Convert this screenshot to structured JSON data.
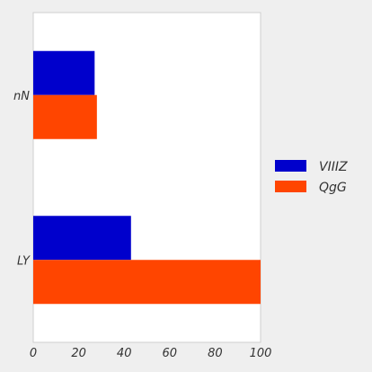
{
  "chart_data": {
    "type": "bar",
    "orientation": "horizontal",
    "categories": [
      "nN",
      "LY"
    ],
    "series": [
      {
        "name": "VIIIZ",
        "color": "#0000cc",
        "values": [
          27,
          43
        ]
      },
      {
        "name": "QgG",
        "color": "#ff4500",
        "values": [
          28,
          100
        ]
      }
    ],
    "xlim": [
      0,
      100
    ],
    "xticks": [
      "0",
      "20",
      "40",
      "60",
      "80",
      "100"
    ],
    "grid": false,
    "legend_position": "right",
    "title": "",
    "xlabel": "",
    "ylabel": ""
  }
}
